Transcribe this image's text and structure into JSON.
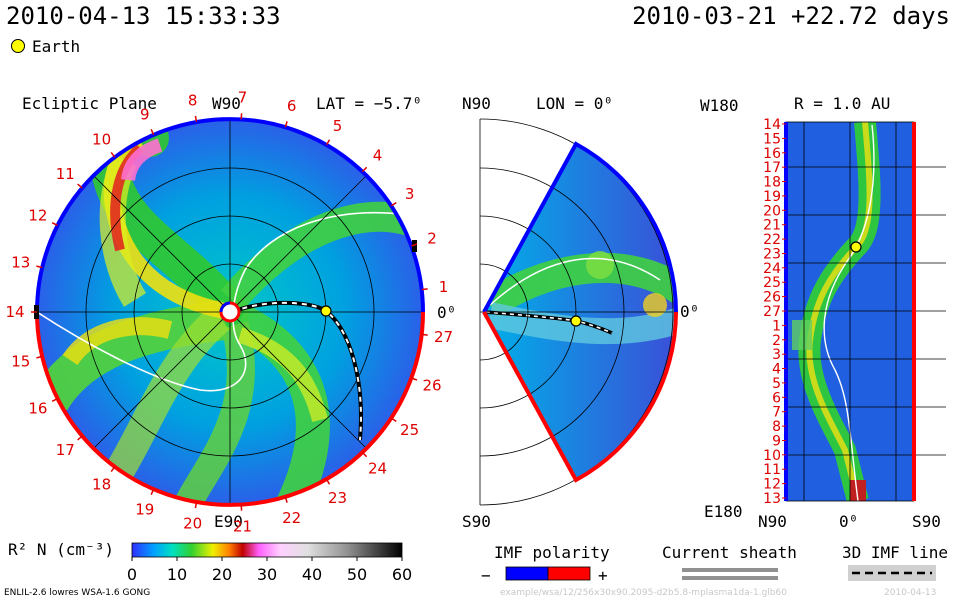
{
  "header": {
    "datetime": "2010-04-13 15:33:33",
    "reference": "2010-03-21 +22.72 days",
    "legend_earth": "Earth"
  },
  "panels": {
    "ecliptic": {
      "title": "Ecliptic Plane",
      "top_label": "W90",
      "lat_label": "LAT = −5.7⁰",
      "bottom_label": "E90",
      "right_label": "0⁰"
    },
    "meridional": {
      "top_label": "N90",
      "lon_label": "LON = 0⁰",
      "bottom_label": "S90",
      "right_label": "0⁰"
    },
    "radial": {
      "title": "R = 1.0 AU",
      "top_label": "W180",
      "bottom_label": "E180",
      "x_labels": [
        "N90",
        "0⁰",
        "S90"
      ],
      "days": [
        "14",
        "15",
        "16",
        "17",
        "18",
        "19",
        "20",
        "21",
        "22",
        "23",
        "24",
        "25",
        "26",
        "27",
        "1",
        "2",
        "3",
        "4",
        "5",
        "6",
        "7",
        "8",
        "9",
        "10",
        "11",
        "12",
        "13"
      ]
    }
  },
  "carrington_days": [
    "14",
    "15",
    "16",
    "17",
    "18",
    "19",
    "20",
    "21",
    "22",
    "23",
    "24",
    "25",
    "26",
    "27",
    "1",
    "2",
    "3",
    "4",
    "5",
    "6",
    "7",
    "8",
    "9",
    "10",
    "11",
    "12",
    "13"
  ],
  "colorbar": {
    "label": "R² N (cm⁻³)",
    "ticks": [
      "0",
      "10",
      "20",
      "30",
      "40",
      "50",
      "60"
    ]
  },
  "legends": {
    "imf_polarity": "IMF polarity",
    "minus": "−",
    "plus": "+",
    "current_sheath": "Current sheath",
    "imf_line": "3D IMF line"
  },
  "footer": {
    "model": "ENLIL-2.6 lowres WSA-1.6 GONG",
    "run_id": "example/wsa/12/256x30x90.2095-d2b5.8-mplasma1da-1.glb60",
    "run_date": "2010-04-13"
  },
  "colors": {
    "polarity_negative": "#0000ff",
    "polarity_positive": "#ff0000",
    "earth": "#ffff00",
    "tick_red": "#dd0000"
  },
  "chart_data": {
    "type": "heatmap",
    "variable": "R² N",
    "unit": "cm⁻³",
    "range": [
      0,
      60
    ],
    "earth": {
      "lat_deg": -5.7,
      "lon_deg": 0,
      "r_au": 1.0
    }
  }
}
